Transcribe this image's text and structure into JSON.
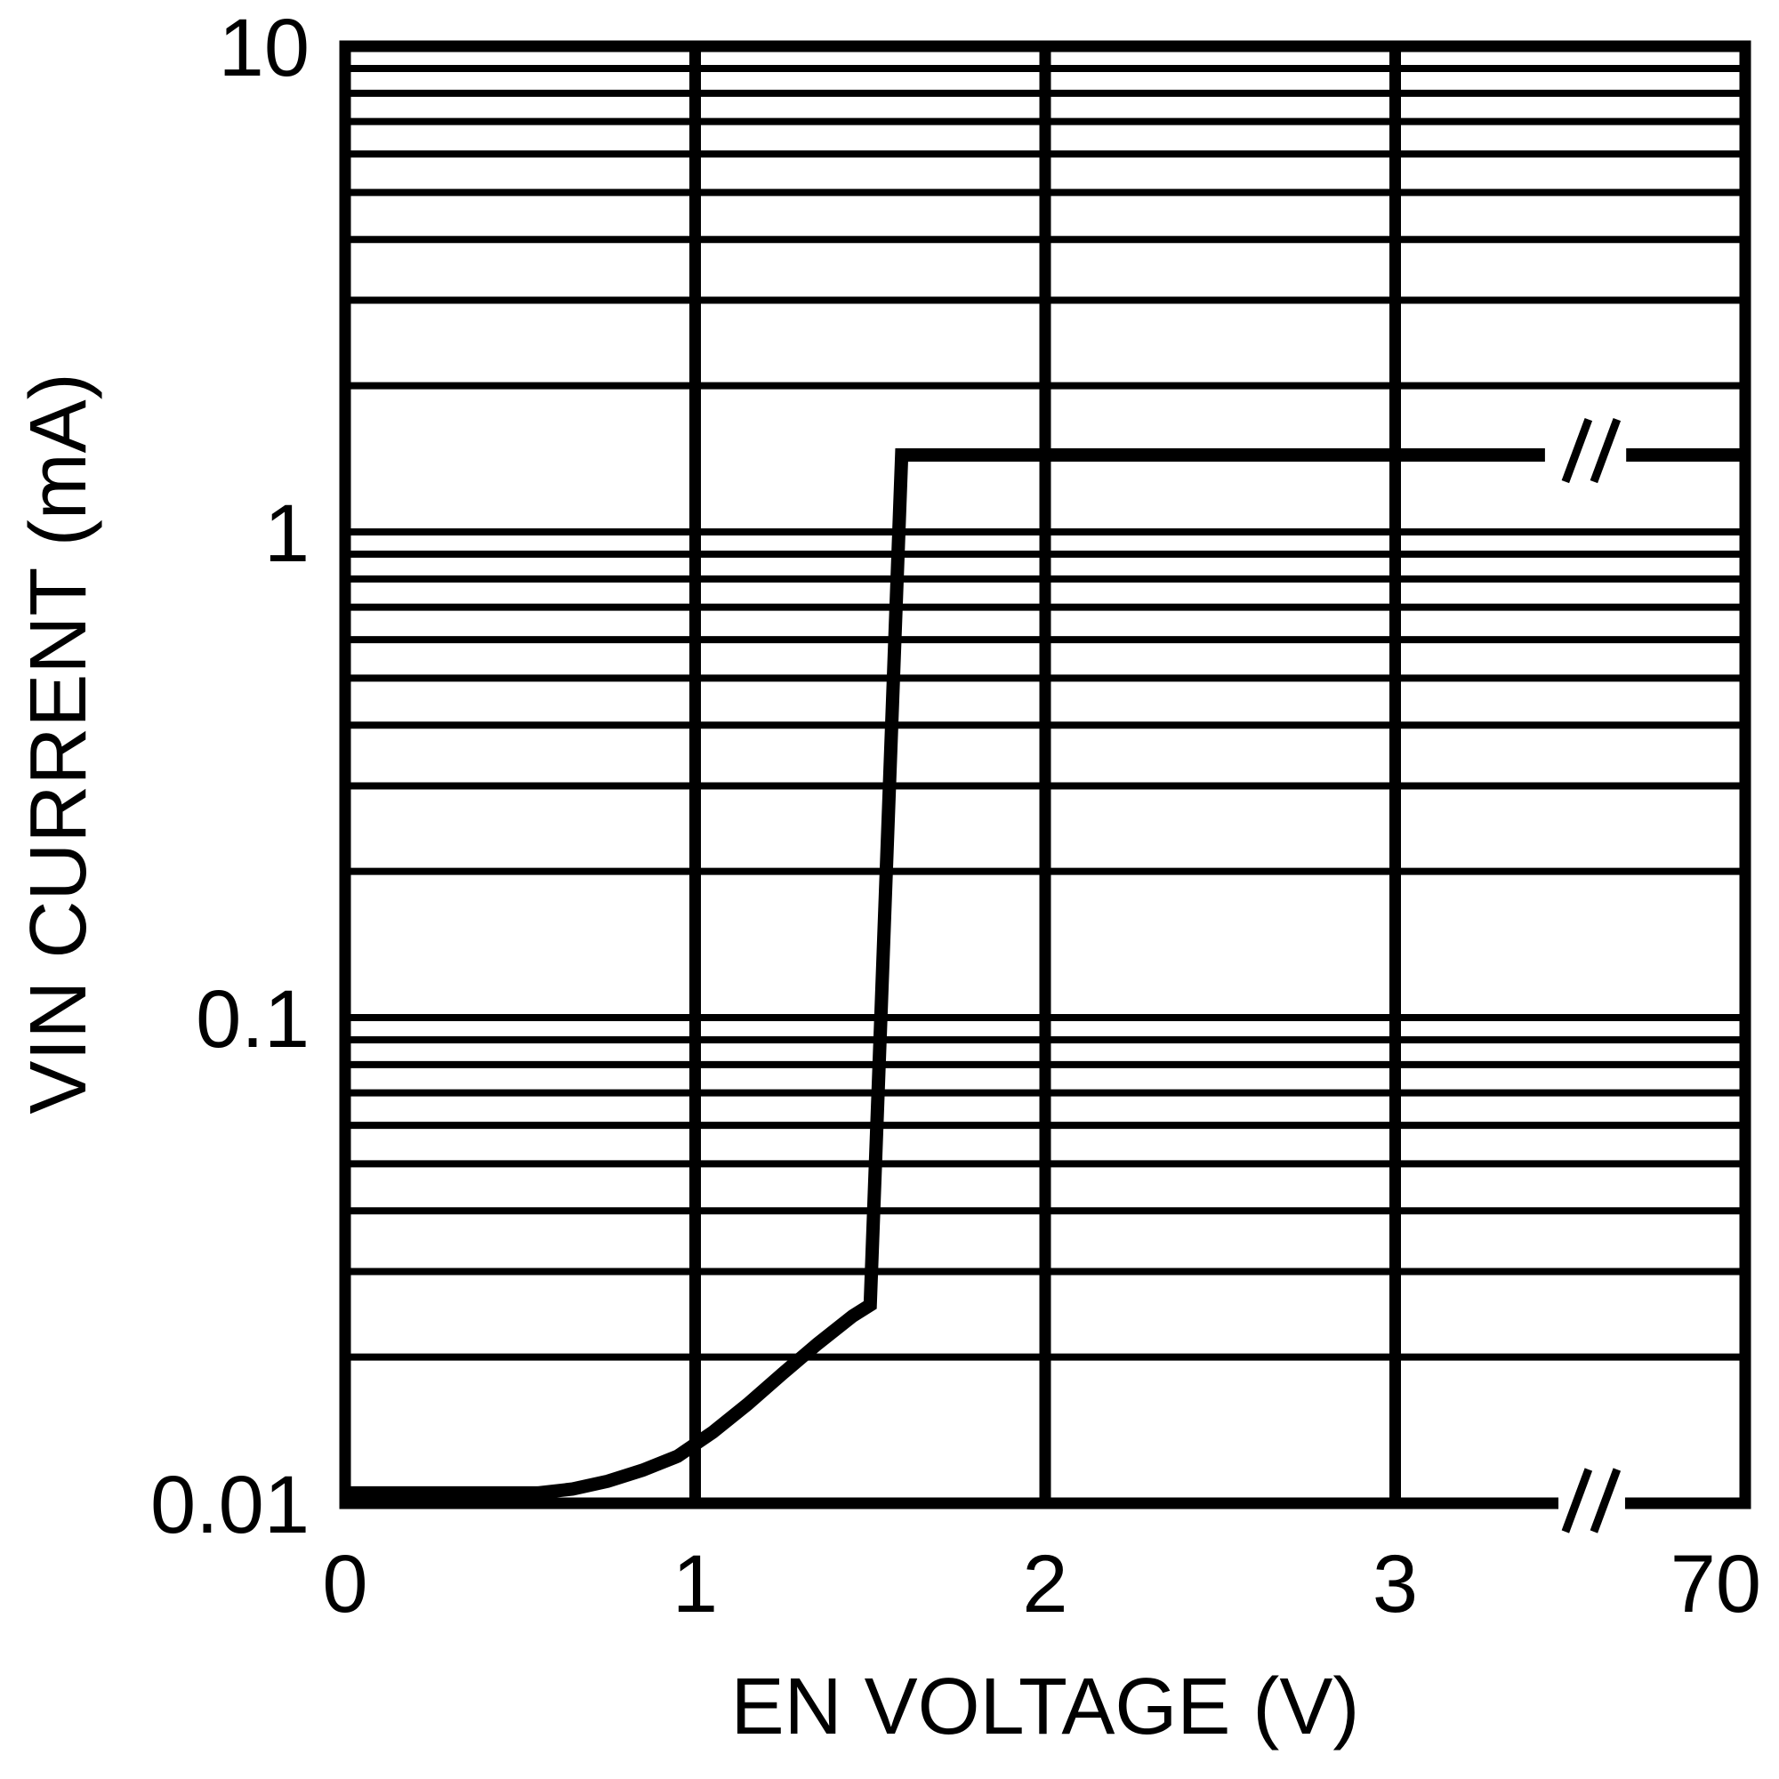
{
  "chart_data": {
    "type": "line",
    "title": "",
    "xlabel": "EN VOLTAGE (V)",
    "ylabel": "VIN CURRENT (mA)",
    "x_axis": {
      "scale": "linear-with-break",
      "tick_values": [
        0,
        1,
        2,
        3,
        70
      ],
      "tick_labels": [
        "0",
        "1",
        "2",
        "3",
        "70"
      ],
      "break_between": [
        3,
        70
      ]
    },
    "y_axis": {
      "scale": "log",
      "min": 0.01,
      "max": 10,
      "tick_values": [
        0.01,
        0.1,
        1,
        10
      ],
      "tick_labels": [
        "0.01",
        "0.1",
        "1",
        "10"
      ],
      "minor_gridlines": "log-decades 2-9"
    },
    "grid": {
      "on": true,
      "y_minor_log": true,
      "x_at_each_volt": true
    },
    "legend": "none",
    "series": [
      {
        "name": "vin-current-vs-en-voltage",
        "points_V_mA": [
          [
            0,
            0.0105
          ],
          [
            0.55,
            0.0105
          ],
          [
            0.65,
            0.0107
          ],
          [
            0.75,
            0.0111
          ],
          [
            0.85,
            0.0117
          ],
          [
            0.95,
            0.0125
          ],
          [
            1.05,
            0.014
          ],
          [
            1.15,
            0.016
          ],
          [
            1.25,
            0.0185
          ],
          [
            1.35,
            0.0213
          ],
          [
            1.45,
            0.0243
          ],
          [
            1.5,
            0.0256
          ],
          [
            1.59,
            1.44
          ]
        ],
        "plateau_mA": 1.44,
        "plateau_extends_to_V": 70
      }
    ],
    "breaks": {
      "curve_gap_frac": [
        0.857,
        0.915
      ],
      "axis_gap_frac": [
        0.8666,
        0.9142
      ],
      "slash_center_frac": 0.89,
      "marker": "//"
    },
    "colors": {
      "foreground": "#000000",
      "background": "#ffffff"
    }
  }
}
